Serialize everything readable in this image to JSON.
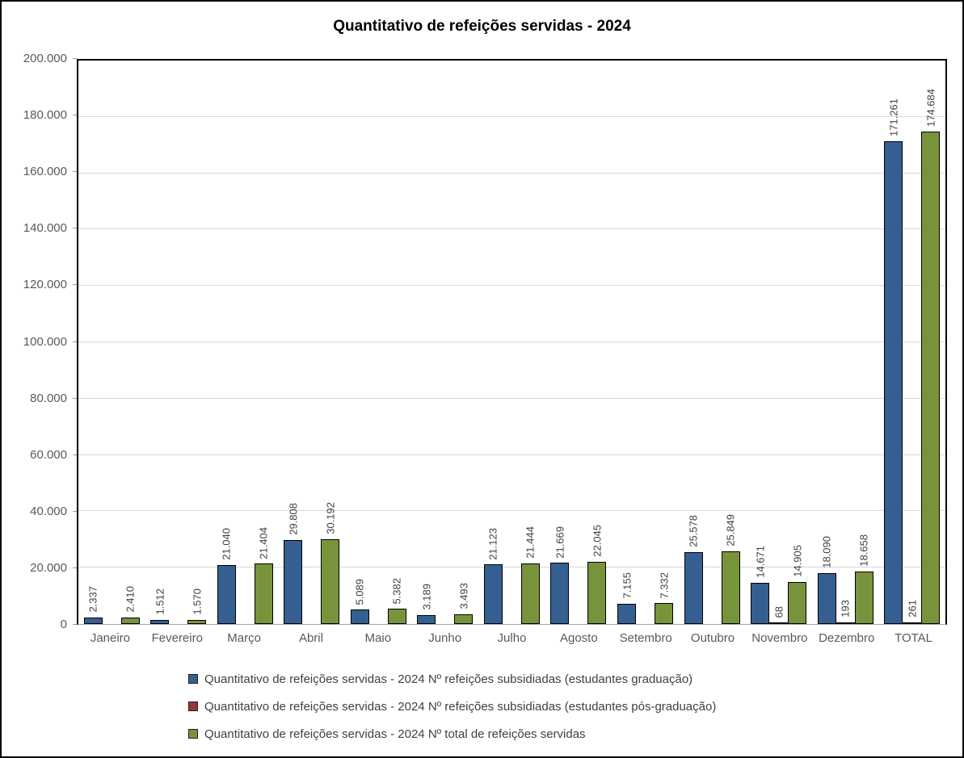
{
  "chart_data": {
    "type": "bar",
    "title": "Quantitativo de refeições servidas - 2024",
    "categories": [
      "Janeiro",
      "Fevereiro",
      "Março",
      "Abril",
      "Maio",
      "Junho",
      "Julho",
      "Agosto",
      "Setembro",
      "Outubro",
      "Novembro",
      "Dezembro",
      "TOTAL"
    ],
    "series": [
      {
        "name": "Quantitativo de refeições servidas - 2024 Nº refeições subsidiadas (estudantes graduação)",
        "color": "#365F91",
        "values": [
          2337,
          1512,
          21040,
          29808,
          5089,
          3189,
          21123,
          21669,
          7155,
          25578,
          14671,
          18090,
          171261
        ],
        "labels": [
          "2.337",
          "1.512",
          "21.040",
          "29.808",
          "5.089",
          "3.189",
          "21.123",
          "21.669",
          "7.155",
          "25.578",
          "14.671",
          "18.090",
          "171.261"
        ]
      },
      {
        "name": "Quantitativo de refeições servidas - 2024 Nº refeições subsidiadas (estudantes pós-graduação)",
        "color": "#953735",
        "values": [
          0,
          0,
          0,
          0,
          0,
          0,
          0,
          0,
          0,
          0,
          68,
          193,
          261
        ],
        "labels": [
          "",
          "",
          "",
          "",
          "",
          "",
          "",
          "",
          "",
          "",
          "68",
          "193",
          "261"
        ]
      },
      {
        "name": "Quantitativo de refeições servidas - 2024 Nº total de refeições servidas",
        "color": "#77933C",
        "values": [
          2410,
          1570,
          21404,
          30192,
          5382,
          3493,
          21444,
          22045,
          7332,
          25849,
          14905,
          18658,
          174684
        ],
        "labels": [
          "2.410",
          "1.570",
          "21.404",
          "30.192",
          "5.382",
          "3.493",
          "21.444",
          "22.045",
          "7.332",
          "25.849",
          "14.905",
          "18.658",
          "174.684"
        ]
      }
    ],
    "y_axis": {
      "min": 0,
      "max": 200000,
      "step": 20000,
      "tick_labels": [
        "0",
        "20.000",
        "40.000",
        "60.000",
        "80.000",
        "100.000",
        "120.000",
        "140.000",
        "160.000",
        "180.000",
        "200.000"
      ]
    },
    "grid": true,
    "legend_position": "bottom-left",
    "data_label_rotation": "vertical",
    "colors": {
      "gridline": "#d9d9d9",
      "axis_text": "#595959",
      "data_label_text": "#404040",
      "plot_border": "#000000"
    }
  }
}
